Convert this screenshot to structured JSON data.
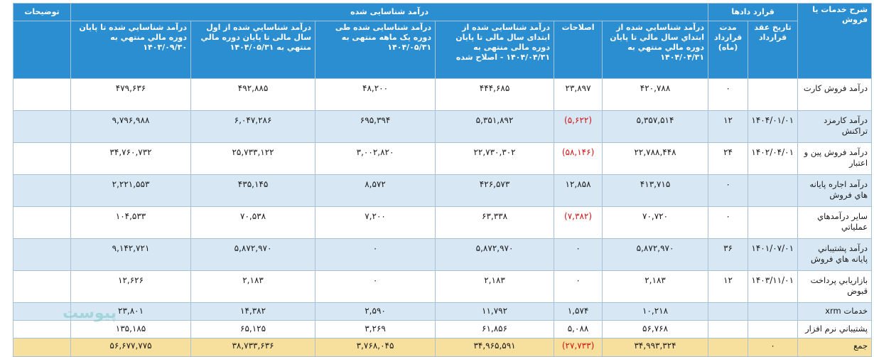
{
  "headers": {
    "service": "شرح خدمات یا فروش",
    "contracts_group": "قرارد دادها",
    "recognized_group": "درآمد شناسایی شده",
    "description": "توضیحات",
    "contract_date": "تاریخ عقد قرارداد",
    "duration": "مدت قرارداد (ماه)",
    "rev_start_prev": "درآمد شناسايي شده از ابتداي سال مالي تا پايان دوره مالي منتهي به ۱۴۰۴/۰۴/۳۱",
    "corrections": "اصلاحات",
    "rev_start_corrected": "درآمد شناسایی شده از ابتدای سال مالی تا پایان دوره مالی منتهی به ۱۴۰۴/۰۴/۳۱ - اصلاح شده",
    "rev_month": "درآمد شناسایی شده طی دوره یک ماهه منتهی به ۱۴۰۴/۰۵/۳۱",
    "rev_ytd": "درآمد شناسايي شده از اول سال مالی تا پایان دوره مالي منتهي به ۱۴۰۴/۰۵/۳۱",
    "rev_end_fy": "درآمد شناسايي شده تا پايان دوره مالي منتهي به ۱۴۰۳/۰۹/۳۰"
  },
  "rows": [
    {
      "service": "درآمد فروش کارت",
      "date": "",
      "duration": "۰",
      "rev_start_prev": "۴۲۰,۷۸۸",
      "corrections": "۲۳,۸۹۷",
      "corrections_negative": false,
      "rev_start_corrected": "۴۴۴,۶۸۵",
      "rev_month": "۴۸,۲۰۰",
      "rev_ytd": "۴۹۲,۸۸۵",
      "rev_end_fy": "۴۷۹,۶۳۶",
      "description": ""
    },
    {
      "service": "درآمد کارمزد تراکنش",
      "date": "۱۴۰۴/۰۱/۰۱",
      "duration": "۱۲",
      "rev_start_prev": "۵,۳۵۷,۵۱۴",
      "corrections": "(۵,۶۲۲)",
      "corrections_negative": true,
      "rev_start_corrected": "۵,۳۵۱,۸۹۲",
      "rev_month": "۶۹۵,۳۹۴",
      "rev_ytd": "۶,۰۴۷,۲۸۶",
      "rev_end_fy": "۹,۷۹۶,۹۸۸",
      "description": ""
    },
    {
      "service": "درآمد فروش پین و اعتبار",
      "date": "۱۴۰۲/۰۴/۰۱",
      "duration": "۲۴",
      "rev_start_prev": "۲۲,۷۸۸,۴۴۸",
      "corrections": "(۵۸,۱۴۶)",
      "corrections_negative": true,
      "rev_start_corrected": "۲۲,۷۳۰,۳۰۲",
      "rev_month": "۳,۰۰۲,۸۲۰",
      "rev_ytd": "۲۵,۷۳۳,۱۲۲",
      "rev_end_fy": "۳۴,۷۶۰,۷۳۲",
      "description": ""
    },
    {
      "service": "درآمد اجاره پایانه هاي فروش",
      "date": "",
      "duration": "۰",
      "rev_start_prev": "۴۱۳,۷۱۵",
      "corrections": "۱۲,۸۵۸",
      "corrections_negative": false,
      "rev_start_corrected": "۴۲۶,۵۷۳",
      "rev_month": "۸,۵۷۲",
      "rev_ytd": "۴۳۵,۱۴۵",
      "rev_end_fy": "۲,۲۲۱,۵۵۳",
      "description": ""
    },
    {
      "service": "ساير درآمدهاي عملياتي",
      "date": "",
      "duration": "۰",
      "rev_start_prev": "۷۰,۷۲۰",
      "corrections": "(۷,۳۸۲)",
      "corrections_negative": true,
      "rev_start_corrected": "۶۳,۳۳۸",
      "rev_month": "۷,۲۰۰",
      "rev_ytd": "۷۰,۵۳۸",
      "rev_end_fy": "۱۰۴,۵۳۳",
      "description": ""
    },
    {
      "service": "درآمد پشتيباني پايانه هاي فروش",
      "date": "۱۴۰۱/۰۷/۰۱",
      "duration": "۳۶",
      "rev_start_prev": "۵,۸۷۲,۹۷۰",
      "corrections": "۰",
      "corrections_negative": false,
      "rev_start_corrected": "۵,۸۷۲,۹۷۰",
      "rev_month": "۰",
      "rev_ytd": "۵,۸۷۲,۹۷۰",
      "rev_end_fy": "۹,۱۴۲,۷۲۱",
      "description": ""
    },
    {
      "service": "بازاريابي پرداخت قبوض",
      "date": "۱۴۰۳/۱۱/۰۱",
      "duration": "۱۲",
      "rev_start_prev": "۲,۱۸۳",
      "corrections": "۰",
      "corrections_negative": false,
      "rev_start_corrected": "۲,۱۸۳",
      "rev_month": "۰",
      "rev_ytd": "۲,۱۸۳",
      "rev_end_fy": "۱۲,۶۲۶",
      "description": ""
    },
    {
      "service": "خدمات xrm",
      "date": "",
      "duration": "",
      "rev_start_prev": "۱۰,۲۱۸",
      "corrections": "۱,۵۷۴",
      "corrections_negative": false,
      "rev_start_corrected": "۱۱,۷۹۲",
      "rev_month": "۲,۵۹۰",
      "rev_ytd": "۱۴,۳۸۲",
      "rev_end_fy": "۲۳,۸۰۱",
      "description": "",
      "small": true
    },
    {
      "service": "پشتيباني نرم افزار",
      "date": "",
      "duration": "",
      "rev_start_prev": "۵۶,۷۶۸",
      "corrections": "۵,۰۸۸",
      "corrections_negative": false,
      "rev_start_corrected": "۶۱,۸۵۶",
      "rev_month": "۳,۲۶۹",
      "rev_ytd": "۶۵,۱۲۵",
      "rev_end_fy": "۱۳۵,۱۸۵",
      "description": "",
      "small": true
    }
  ],
  "total": {
    "service": "جمع",
    "date": "۰",
    "duration": "",
    "rev_start_prev": "۳۴,۹۹۳,۳۲۴",
    "corrections": "(۲۷,۷۳۳)",
    "rev_start_corrected": "۳۴,۹۶۵,۵۹۱",
    "rev_month": "۳,۷۶۸,۰۴۵",
    "rev_ytd": "۳۸,۷۳۳,۶۳۶",
    "rev_end_fy": "۵۶,۶۷۷,۷۷۵",
    "description": ""
  },
  "watermark": "پیوست"
}
